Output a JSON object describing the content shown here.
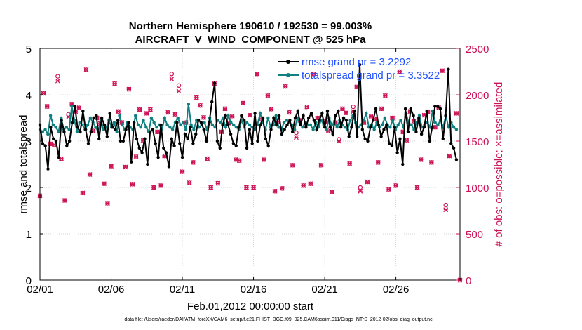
{
  "chart_data": {
    "type": "line",
    "title": "Northern Hemisphere 190610 / 192530 = 99.003%",
    "subtitle": "AIRCRAFT_V_WIND_COMPONENT @ 525 hPa",
    "xlabel": "Feb.01,2012 00:00:00 start",
    "ylabel": "rmse and totalspread",
    "ylabel_right": "# of obs: o=possible; ×=assimilated",
    "footnote": "data file: /Users/raeder/DAI/ATM_forcXX/CAM6_setup/f.e21.FHIST_BGC.f09_025.CAM6assim.011/Diags_NTrS_2012-02/obs_diag_output.nc",
    "xlim": [
      0,
      29.5
    ],
    "ylim": [
      0,
      5
    ],
    "ylim_right": [
      0,
      2500
    ],
    "x_ticks": [
      0,
      5,
      10,
      15,
      20,
      25
    ],
    "x_tick_labels": [
      "02/01",
      "02/06",
      "02/11",
      "02/16",
      "02/21",
      "02/26"
    ],
    "y_ticks": [
      0,
      1,
      2,
      3,
      4,
      5
    ],
    "y_tick_labels": [
      "0",
      "1",
      "2",
      "3",
      "4",
      "5"
    ],
    "y_ticks_right": [
      0,
      500,
      1000,
      1500,
      2000,
      2500
    ],
    "y_tick_labels_right": [
      "0",
      "500",
      "1000",
      "1500",
      "2000",
      "2500"
    ],
    "legend_position": "top-right",
    "colors": {
      "rmse": "#000000",
      "spread": "#0f8080",
      "obs": "#cc1155",
      "legend_text": "#1f4fff"
    },
    "series": [
      {
        "name": "rmse grand pr = 3.2292",
        "values": [
          3.35,
          2.95,
          2.9,
          2.4,
          3.3,
          3.05,
          3.0,
          2.65,
          3.45,
          3.2,
          2.9,
          3.0,
          3.4,
          3.75,
          3.3,
          3.2,
          3.65,
          3.25,
          2.95,
          3.2,
          3.5,
          3.55,
          3.05,
          3.5,
          3.35,
          3.1,
          3.6,
          3.3,
          3.25,
          3.45,
          3.0,
          3.0,
          3.25,
          3.4,
          2.55,
          3.4,
          3.05,
          2.85,
          2.75,
          3.05,
          2.5,
          3.2,
          3.25,
          2.95,
          2.65,
          3.35,
          2.85,
          2.75,
          2.45,
          3.05,
          2.9,
          3.4,
          2.95,
          2.65,
          3.15,
          3.05,
          3.3,
          2.95,
          3.15,
          3.45,
          3.4,
          3.25,
          3.0,
          3.4,
          3.85,
          4.25,
          3.0,
          2.85,
          3.35,
          3.55,
          3.35,
          3.15,
          2.95,
          2.9,
          3.3,
          3.55,
          3.45,
          2.85,
          3.25,
          2.95,
          3.6,
          3.0,
          3.35,
          3.5,
          3.05,
          2.9,
          3.25,
          3.5,
          3.35,
          3.55,
          3.15,
          3.25,
          3.35,
          3.45,
          3.2,
          3.5,
          3.65,
          3.35,
          3.55,
          3.3,
          3.5,
          3.6,
          3.45,
          3.25,
          3.45,
          3.6,
          3.3,
          3.65,
          3.3,
          3.15,
          3.55,
          3.65,
          3.3,
          3.5,
          3.45,
          3.1,
          3.3,
          3.65,
          3.1,
          4.65,
          3.25,
          3.05,
          3.0,
          3.3,
          3.45,
          3.7,
          3.35,
          3.1,
          3.25,
          3.35,
          2.95,
          2.9,
          3.3,
          2.75,
          3.05,
          2.5,
          3.7,
          3.2,
          3.7,
          3.55,
          3.2,
          3.5,
          3.15,
          3.3,
          3.65,
          3.0,
          3.3,
          3.75,
          3.75,
          3.7,
          3.05,
          3.55,
          4.55,
          2.95,
          2.85,
          2.6
        ],
        "values_label": "rmse"
      },
      {
        "name": "totalspread grand pr = 3.3522",
        "values": [
          3.25,
          3.2,
          3.25,
          3.15,
          3.55,
          3.35,
          3.3,
          3.2,
          3.5,
          3.25,
          3.3,
          3.25,
          3.75,
          3.45,
          3.2,
          3.4,
          3.35,
          3.25,
          3.35,
          3.5,
          3.4,
          3.3,
          3.2,
          3.45,
          3.25,
          3.3,
          3.45,
          3.3,
          3.4,
          3.2,
          3.55,
          3.35,
          3.25,
          3.4,
          3.3,
          3.25,
          3.55,
          3.35,
          3.3,
          3.45,
          3.3,
          3.2,
          3.5,
          3.4,
          3.3,
          3.35,
          3.25,
          3.5,
          3.35,
          3.3,
          3.25,
          3.4,
          3.5,
          3.35,
          3.4,
          3.25,
          3.8,
          3.35,
          3.25,
          3.45,
          3.3,
          3.35,
          3.4,
          3.25,
          3.5,
          3.35,
          3.3,
          3.45,
          3.4,
          3.5,
          3.3,
          3.55,
          3.4,
          3.35,
          3.3,
          3.25,
          3.45,
          3.3,
          3.4,
          3.35,
          3.3,
          3.25,
          3.35,
          3.6,
          3.4,
          3.25,
          3.5,
          3.3,
          3.35,
          3.55,
          3.3,
          3.25,
          3.4,
          3.45,
          3.4,
          3.35,
          3.25,
          3.5,
          3.4,
          3.3,
          3.4,
          3.35,
          3.35,
          3.25,
          3.4,
          3.3,
          3.45,
          3.35,
          3.25,
          3.5,
          3.35,
          3.4,
          3.3,
          3.45,
          3.35,
          3.3,
          3.25,
          3.45,
          3.55,
          3.4,
          3.3,
          3.35,
          3.45,
          3.6,
          3.3,
          3.35,
          3.25,
          3.4,
          3.3,
          3.35,
          3.5,
          3.35,
          3.3,
          3.45,
          3.25,
          3.35,
          3.45,
          3.3,
          3.6,
          3.4,
          3.35,
          3.25,
          3.4,
          3.55,
          3.3,
          3.35,
          3.4,
          3.3,
          3.65,
          3.4,
          3.35,
          3.45,
          3.3,
          3.55,
          3.3,
          3.4,
          3.3,
          3.25
        ],
        "values_label": "totalspread"
      }
    ],
    "obs_possible": [
      [
        0.25,
        2015
      ],
      [
        1.25,
        2200
      ],
      [
        2.25,
        1900
      ],
      [
        3.25,
        2270
      ],
      [
        4.25,
        1690
      ],
      [
        5.25,
        2120
      ],
      [
        6.25,
        2060
      ],
      [
        7.25,
        1510
      ],
      [
        8.25,
        1600
      ],
      [
        9.25,
        2225
      ],
      [
        10.25,
        1700
      ],
      [
        11.25,
        1885
      ],
      [
        12.25,
        2120
      ],
      [
        13.25,
        1695
      ],
      [
        14.25,
        1910
      ],
      [
        15.25,
        2225
      ],
      [
        16.25,
        1845
      ],
      [
        17.25,
        2090
      ],
      [
        18.25,
        1725
      ],
      [
        19.25,
        2225
      ],
      [
        20.25,
        1610
      ],
      [
        21.25,
        1850
      ],
      [
        22.25,
        2085
      ],
      [
        23.25,
        1770
      ],
      [
        24.25,
        1990
      ],
      [
        25.25,
        2250
      ],
      [
        26.25,
        1715
      ],
      [
        27.25,
        1815
      ],
      [
        28.25,
        2260
      ],
      [
        29.25,
        1800
      ],
      [
        0.5,
        1875
      ],
      [
        1.5,
        1310
      ],
      [
        2.5,
        1820
      ],
      [
        3.5,
        1140
      ],
      [
        4.5,
        1040
      ],
      [
        5.5,
        1820
      ],
      [
        6.5,
        1035
      ],
      [
        7.5,
        1800
      ],
      [
        8.5,
        1020
      ],
      [
        9.5,
        1790
      ],
      [
        10.5,
        1050
      ],
      [
        11.5,
        1755
      ],
      [
        12.5,
        1045
      ],
      [
        13.5,
        1770
      ],
      [
        14.5,
        1000
      ],
      [
        15.5,
        1740
      ],
      [
        16.5,
        960
      ],
      [
        17.5,
        1810
      ],
      [
        18.5,
        1020
      ],
      [
        19.5,
        1750
      ],
      [
        20.5,
        950
      ],
      [
        21.5,
        1805
      ],
      [
        22.5,
        1000
      ],
      [
        23.5,
        1740
      ],
      [
        24.5,
        980
      ],
      [
        25.5,
        1600
      ],
      [
        26.5,
        1000
      ],
      [
        27.5,
        1270
      ],
      [
        28.5,
        810
      ],
      [
        0.75,
        1470
      ],
      [
        1.75,
        860
      ],
      [
        2.75,
        1860
      ],
      [
        3.75,
        1610
      ],
      [
        4.75,
        830
      ],
      [
        5.75,
        1700
      ],
      [
        6.75,
        1330
      ],
      [
        7.75,
        1840
      ],
      [
        8.75,
        1340
      ],
      [
        9.75,
        2100
      ],
      [
        10.75,
        1270
      ],
      [
        11.75,
        1310
      ],
      [
        12.75,
        1600
      ],
      [
        13.75,
        1300
      ],
      [
        14.75,
        1780
      ],
      [
        15.75,
        1300
      ],
      [
        16.75,
        1710
      ],
      [
        17.75,
        1240
      ],
      [
        18.75,
        1870
      ],
      [
        19.75,
        1240
      ],
      [
        20.75,
        1700
      ],
      [
        21.75,
        1260
      ],
      [
        22.75,
        1700
      ],
      [
        23.75,
        1270
      ],
      [
        24.75,
        1750
      ],
      [
        25.75,
        1510
      ],
      [
        26.75,
        1300
      ],
      [
        27.75,
        1650
      ],
      [
        28.75,
        1340
      ],
      [
        1.0,
        1460
      ],
      [
        2.0,
        1790
      ],
      [
        3.0,
        940
      ],
      [
        4.0,
        1750
      ],
      [
        5.0,
        1230
      ],
      [
        6.0,
        1220
      ],
      [
        7.0,
        1840
      ],
      [
        8.0,
        1000
      ],
      [
        9.0,
        1810
      ],
      [
        10.0,
        1170
      ],
      [
        11.0,
        1970
      ],
      [
        12.0,
        1000
      ],
      [
        13.0,
        1850
      ],
      [
        14.0,
        1290
      ],
      [
        15.0,
        1000
      ],
      [
        16.0,
        1990
      ],
      [
        17.0,
        990
      ],
      [
        18.0,
        1590
      ],
      [
        19.0,
        1040
      ],
      [
        20.0,
        1710
      ],
      [
        21.0,
        1520
      ],
      [
        22.0,
        1870
      ],
      [
        23.0,
        1060
      ],
      [
        24.0,
        1850
      ],
      [
        25.0,
        1020
      ],
      [
        26.0,
        1820
      ],
      [
        27.0,
        1780
      ],
      [
        28.0,
        1860
      ],
      [
        0.0,
        910
      ],
      [
        29.5,
        0
      ]
    ],
    "obs_assimilated": [
      [
        0.25,
        2015
      ],
      [
        1.25,
        2150
      ],
      [
        2.25,
        1900
      ],
      [
        3.25,
        2270
      ],
      [
        4.25,
        1690
      ],
      [
        5.25,
        2120
      ],
      [
        6.25,
        2060
      ],
      [
        7.25,
        1510
      ],
      [
        8.25,
        1600
      ],
      [
        9.25,
        2170
      ],
      [
        10.25,
        1700
      ],
      [
        11.25,
        1885
      ],
      [
        12.25,
        2120
      ],
      [
        13.25,
        1695
      ],
      [
        14.25,
        1910
      ],
      [
        15.25,
        2225
      ],
      [
        16.25,
        1845
      ],
      [
        17.25,
        2090
      ],
      [
        18.25,
        1725
      ],
      [
        19.25,
        2225
      ],
      [
        20.25,
        1610
      ],
      [
        21.25,
        1850
      ],
      [
        22.25,
        2085
      ],
      [
        23.25,
        1770
      ],
      [
        24.25,
        1990
      ],
      [
        25.25,
        2250
      ],
      [
        26.25,
        1715
      ],
      [
        27.25,
        1815
      ],
      [
        28.25,
        2260
      ],
      [
        29.25,
        1800
      ],
      [
        0.5,
        1875
      ],
      [
        1.5,
        1310
      ],
      [
        2.5,
        1820
      ],
      [
        3.5,
        1140
      ],
      [
        4.5,
        1040
      ],
      [
        5.5,
        1820
      ],
      [
        6.5,
        1035
      ],
      [
        7.5,
        1800
      ],
      [
        8.5,
        1020
      ],
      [
        9.5,
        1790
      ],
      [
        10.5,
        1050
      ],
      [
        11.5,
        1755
      ],
      [
        12.5,
        1045
      ],
      [
        13.5,
        1770
      ],
      [
        14.5,
        1000
      ],
      [
        15.5,
        1740
      ],
      [
        16.5,
        960
      ],
      [
        17.5,
        1810
      ],
      [
        18.5,
        1020
      ],
      [
        19.5,
        1750
      ],
      [
        20.5,
        950
      ],
      [
        21.5,
        1805
      ],
      [
        22.5,
        960
      ],
      [
        23.5,
        1740
      ],
      [
        24.5,
        980
      ],
      [
        25.5,
        1600
      ],
      [
        26.5,
        1000
      ],
      [
        27.5,
        1270
      ],
      [
        28.5,
        760
      ],
      [
        0.75,
        1470
      ],
      [
        1.75,
        860
      ],
      [
        2.75,
        1860
      ],
      [
        3.75,
        1610
      ],
      [
        4.75,
        830
      ],
      [
        5.75,
        1700
      ],
      [
        6.75,
        1330
      ],
      [
        7.75,
        1840
      ],
      [
        8.75,
        1340
      ],
      [
        9.75,
        2040
      ],
      [
        10.75,
        1270
      ],
      [
        11.75,
        1310
      ],
      [
        12.75,
        1600
      ],
      [
        13.75,
        1300
      ],
      [
        14.75,
        1780
      ],
      [
        15.75,
        1300
      ],
      [
        16.75,
        1710
      ],
      [
        17.75,
        1240
      ],
      [
        18.75,
        1870
      ],
      [
        19.75,
        1240
      ],
      [
        20.75,
        1700
      ],
      [
        21.75,
        1260
      ],
      [
        22.75,
        1700
      ],
      [
        23.75,
        1270
      ],
      [
        24.75,
        1750
      ],
      [
        25.75,
        1510
      ],
      [
        26.75,
        1300
      ],
      [
        27.75,
        1650
      ],
      [
        28.75,
        1340
      ],
      [
        1.0,
        1460
      ],
      [
        2.0,
        1760
      ],
      [
        3.0,
        940
      ],
      [
        4.0,
        1750
      ],
      [
        5.0,
        1230
      ],
      [
        6.0,
        1220
      ],
      [
        7.0,
        1840
      ],
      [
        8.0,
        1000
      ],
      [
        9.0,
        1810
      ],
      [
        10.0,
        1170
      ],
      [
        11.0,
        1970
      ],
      [
        12.0,
        1000
      ],
      [
        13.0,
        1850
      ],
      [
        14.0,
        1290
      ],
      [
        15.0,
        1000
      ],
      [
        16.0,
        1990
      ],
      [
        17.0,
        990
      ],
      [
        18.0,
        1540
      ],
      [
        19.0,
        1040
      ],
      [
        20.0,
        1710
      ],
      [
        21.0,
        1500
      ],
      [
        22.0,
        1820
      ],
      [
        23.0,
        1060
      ],
      [
        24.0,
        1850
      ],
      [
        25.0,
        1020
      ],
      [
        26.0,
        1820
      ],
      [
        27.0,
        1780
      ],
      [
        28.0,
        1860
      ],
      [
        0.0,
        910
      ],
      [
        29.5,
        0
      ]
    ]
  }
}
